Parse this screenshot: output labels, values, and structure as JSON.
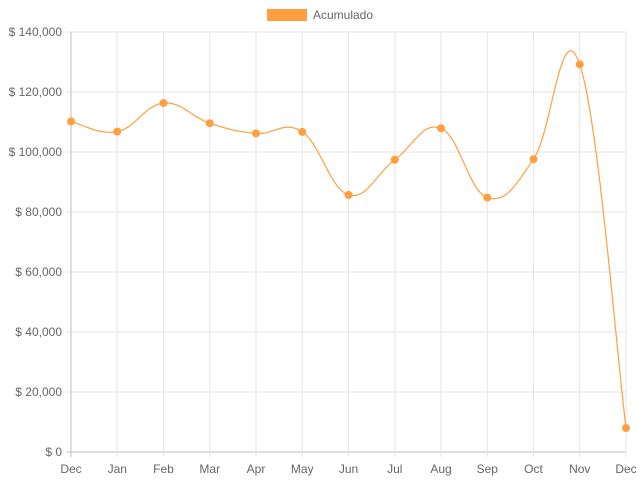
{
  "chart_data": {
    "type": "line",
    "categories": [
      "Dec",
      "Jan",
      "Feb",
      "Mar",
      "Apr",
      "May",
      "Jun",
      "Jul",
      "Aug",
      "Sep",
      "Oct",
      "Nov",
      "Dec"
    ],
    "series": [
      {
        "name": "Acumulado",
        "values": [
          110200,
          106800,
          116300,
          109600,
          106200,
          106700,
          85700,
          97400,
          107900,
          84800,
          97600,
          129200,
          8000
        ],
        "color": "#ff9f40"
      }
    ],
    "y_ticks": [
      "$ 140,000",
      "$ 120,000",
      "$ 100,000",
      "$ 80,000",
      "$ 60,000",
      "$ 40,000",
      "$ 20,000",
      "$ 0"
    ],
    "ylim": [
      0,
      140000
    ],
    "y_step": 20000,
    "grid": true,
    "legend_position": "top-center"
  }
}
